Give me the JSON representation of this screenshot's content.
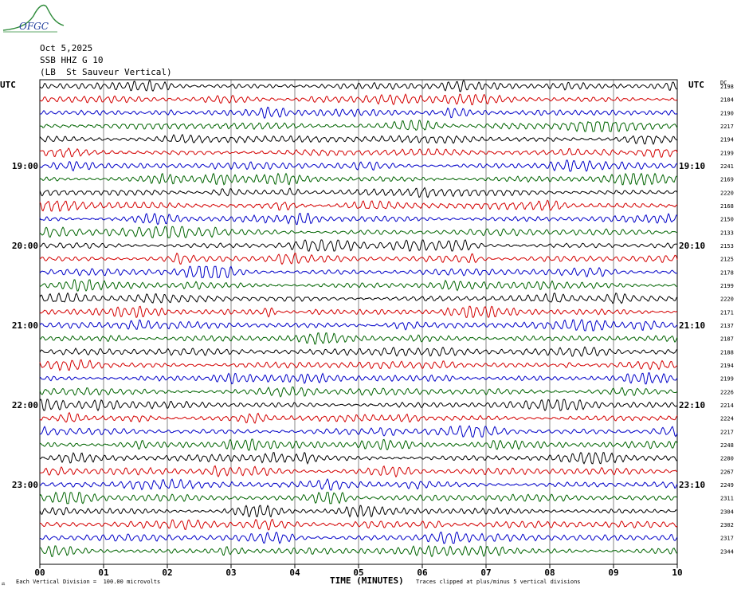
{
  "header": {
    "logo_text": "OFGC",
    "date": "Oct 5,2025",
    "station": "SSB HHZ G 10",
    "location": "(LB  St Sauveur Vertical)"
  },
  "axis": {
    "left_unit": "UTC",
    "right_unit": "UTC",
    "right_col_label": "DC"
  },
  "footer": {
    "left_mark": "⚖",
    "scale_note": "Each Vertical Division =  100.00 microvolts",
    "xlabel": "TIME (MINUTES)",
    "clip_note": "Traces clipped at plus/minus 5 vertical divisions"
  },
  "chart_data": {
    "type": "line",
    "title": "",
    "xlabel": "TIME (MINUTES)",
    "xlim": [
      0,
      10
    ],
    "x_ticks": [
      "00",
      "01",
      "02",
      "03",
      "04",
      "05",
      "06",
      "07",
      "08",
      "09",
      "10"
    ],
    "rows_per_hour": 6,
    "left_labels": [
      {
        "row": 6,
        "text": "19:00"
      },
      {
        "row": 12,
        "text": "20:00"
      },
      {
        "row": 18,
        "text": "21:00"
      },
      {
        "row": 24,
        "text": "22:00"
      },
      {
        "row": 30,
        "text": "23:00"
      }
    ],
    "right_labels": [
      {
        "row": 6,
        "text": "19:10"
      },
      {
        "row": 12,
        "text": "20:10"
      },
      {
        "row": 18,
        "text": "21:10"
      },
      {
        "row": 24,
        "text": "22:10"
      },
      {
        "row": 30,
        "text": "23:10"
      }
    ],
    "dc_values": [
      "2198",
      "2184",
      "2190",
      "2217",
      "2194",
      "2199",
      "2241",
      "2169",
      "2220",
      "2168",
      "2150",
      "2133",
      "2153",
      "2125",
      "2178",
      "2199",
      "2220",
      "2171",
      "2137",
      "2187",
      "2188",
      "2194",
      "2199",
      "2226",
      "2214",
      "2224",
      "2217",
      "2248",
      "2280",
      "2267",
      "2249",
      "2311",
      "2304",
      "2302",
      "2317",
      "2344"
    ],
    "trace_colors": [
      "#000000",
      "#d40000",
      "#0000c8",
      "#006400"
    ],
    "grid_color": "#555555"
  }
}
